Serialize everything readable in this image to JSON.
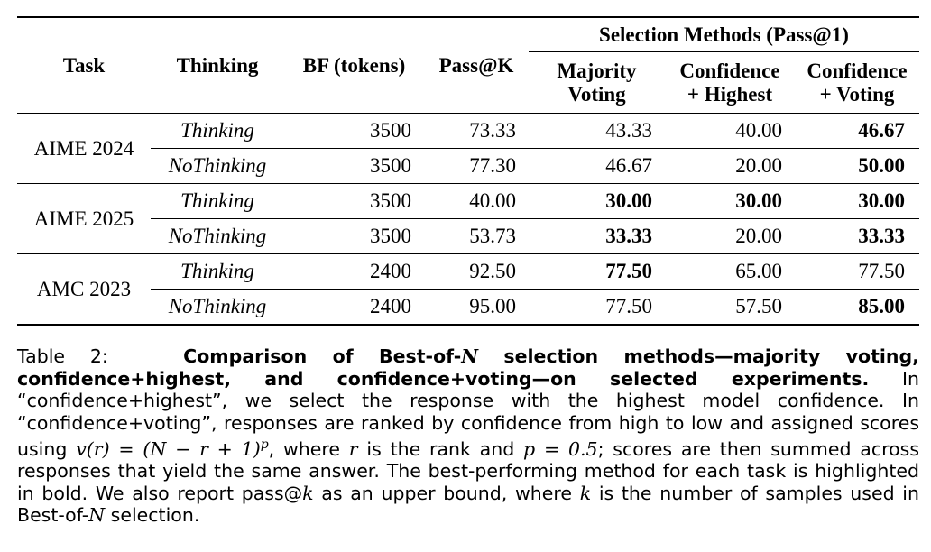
{
  "table": {
    "headers": {
      "task": "Task",
      "thinking": "Thinking",
      "bf": "BF (tokens)",
      "passk": "Pass@K",
      "selection_group": "Selection Methods (Pass@1)",
      "majority_line1": "Majority",
      "majority_line2": "Voting",
      "conf_highest_line1": "Confidence",
      "conf_highest_line2": "+ Highest",
      "conf_voting_line1": "Confidence",
      "conf_voting_line2": "+ Voting"
    },
    "groups": [
      {
        "task": "AIME 2024",
        "rows": [
          {
            "thinking": "Thinking",
            "bf": "3500",
            "passk": "73.33",
            "majority": "43.33",
            "conf_highest": "40.00",
            "conf_voting": "46.67",
            "bold": {
              "majority": false,
              "conf_highest": false,
              "conf_voting": true
            }
          },
          {
            "thinking": "NoThinking",
            "bf": "3500",
            "passk": "77.30",
            "majority": "46.67",
            "conf_highest": "20.00",
            "conf_voting": "50.00",
            "bold": {
              "majority": false,
              "conf_highest": false,
              "conf_voting": true
            }
          }
        ]
      },
      {
        "task": "AIME 2025",
        "rows": [
          {
            "thinking": "Thinking",
            "bf": "3500",
            "passk": "40.00",
            "majority": "30.00",
            "conf_highest": "30.00",
            "conf_voting": "30.00",
            "bold": {
              "majority": true,
              "conf_highest": true,
              "conf_voting": true
            }
          },
          {
            "thinking": "NoThinking",
            "bf": "3500",
            "passk": "53.73",
            "majority": "33.33",
            "conf_highest": "20.00",
            "conf_voting": "33.33",
            "bold": {
              "majority": true,
              "conf_highest": false,
              "conf_voting": true
            }
          }
        ]
      },
      {
        "task": "AMC 2023",
        "rows": [
          {
            "thinking": "Thinking",
            "bf": "2400",
            "passk": "92.50",
            "majority": "77.50",
            "conf_highest": "65.00",
            "conf_voting": "77.50",
            "bold": {
              "majority": true,
              "conf_highest": false,
              "conf_voting": false
            }
          },
          {
            "thinking": "NoThinking",
            "bf": "2400",
            "passk": "95.00",
            "majority": "77.50",
            "conf_highest": "57.50",
            "conf_voting": "85.00",
            "bold": {
              "majority": false,
              "conf_highest": false,
              "conf_voting": true
            }
          }
        ]
      }
    ]
  },
  "caption": {
    "label": "Table 2:",
    "bold_a": "Comparison of Best-of-",
    "bold_n": "N",
    "bold_b": " selection methods—majority voting, confidence+highest, and confidence+voting—on selected experiments.",
    "t1": " In “confidence+highest”, we select the response with the highest model confidence. In “confidence+voting”, responses are ranked by confidence from high to low and assigned scores using ",
    "formula": "v(r) = (N − r + 1)",
    "formula_exp": "p",
    "t2": ", where ",
    "var_r": "r",
    "t3": " is the rank and ",
    "p_eq": "p = 0.5",
    "t4": "; scores are then summed across responses that yield the same answer. The best-performing method for each task is highlighted in bold. We also report pass@",
    "var_k": "k",
    "t5": " as an upper bound, where ",
    "var_k2": "k",
    "t6": " is the number of samples used in Best-of-",
    "var_n": "N",
    "t7": " selection."
  }
}
